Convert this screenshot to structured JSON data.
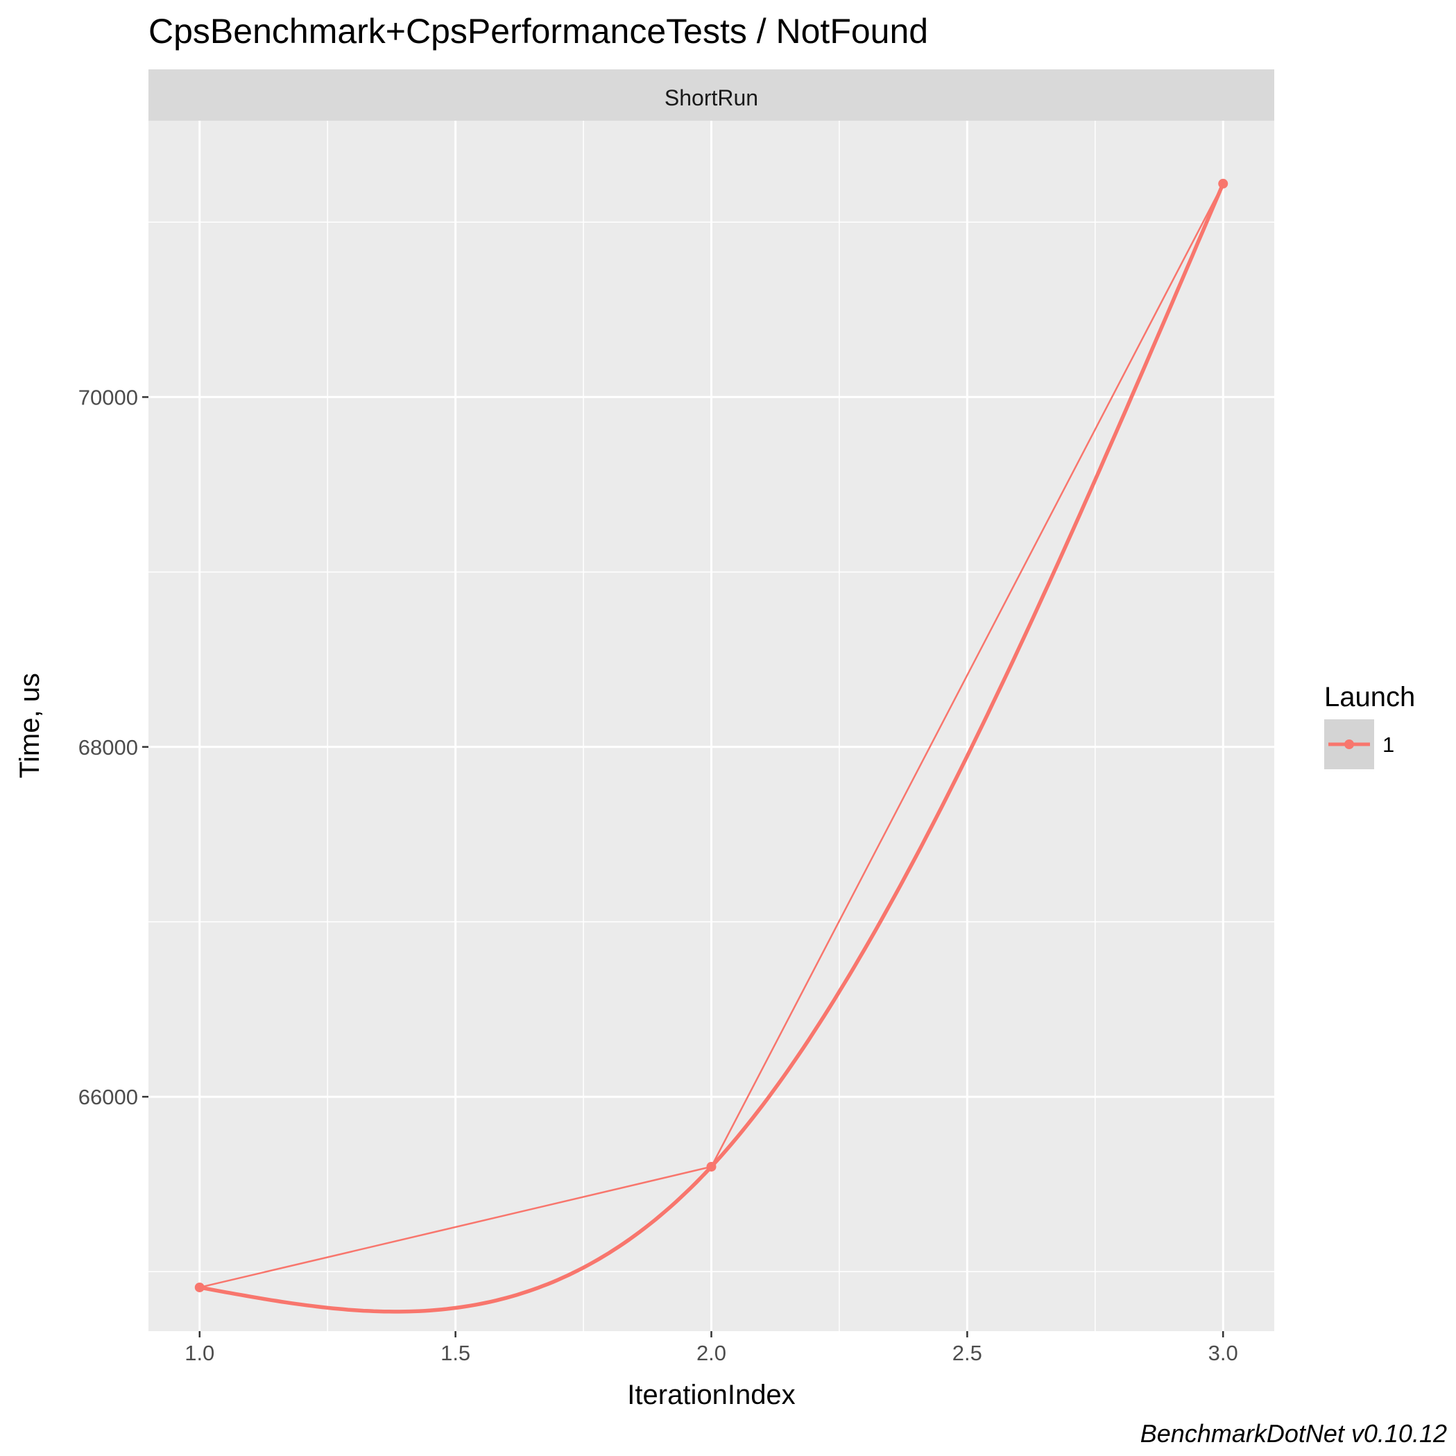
{
  "chart_data": {
    "type": "line",
    "title": "CpsBenchmark+CpsPerformanceTests / NotFound",
    "facet_label": "ShortRun",
    "xlabel": "IterationIndex",
    "ylabel": "Time, us",
    "x_ticks": [
      "1.0",
      "1.5",
      "2.0",
      "2.5",
      "3.0"
    ],
    "y_ticks": [
      "66000",
      "68000",
      "70000"
    ],
    "xlim": [
      0.9,
      3.1
    ],
    "ylim": [
      64660,
      71580
    ],
    "grid": true,
    "legend_title": "Launch",
    "legend_position": "right",
    "series": [
      {
        "name": "1",
        "color": "#F8766D",
        "x": [
          1,
          2,
          3
        ],
        "y": [
          64910,
          65600,
          71220
        ]
      }
    ],
    "caption": "BenchmarkDotNet v0.10.12"
  }
}
